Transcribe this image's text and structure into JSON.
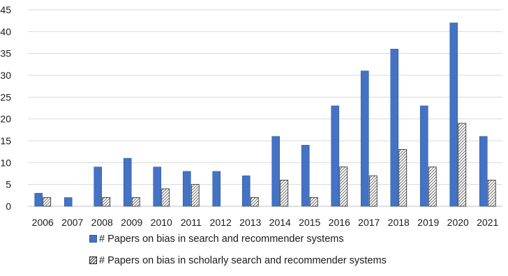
{
  "chart_data": {
    "type": "bar",
    "title": "",
    "xlabel": "",
    "ylabel": "",
    "ylim": [
      0,
      45
    ],
    "ytick_step": 5,
    "grid": true,
    "legend_position": "bottom",
    "categories": [
      "2006",
      "2007",
      "2008",
      "2009",
      "2010",
      "2011",
      "2012",
      "2013",
      "2014",
      "2015",
      "2016",
      "2017",
      "2018",
      "2019",
      "2020",
      "2021"
    ],
    "series": [
      {
        "name": "# Papers on bias in search and recommender systems",
        "values": [
          3,
          2,
          9,
          11,
          9,
          8,
          8,
          7,
          16,
          14,
          23,
          31,
          36,
          23,
          42,
          16
        ],
        "style": "solid",
        "color": "#4472c4"
      },
      {
        "name": "# Papers on bias in scholarly search and recommender systems",
        "values": [
          2,
          0,
          2,
          2,
          4,
          5,
          0,
          2,
          6,
          2,
          9,
          7,
          13,
          9,
          19,
          6
        ],
        "style": "hatched",
        "color": "#222222"
      }
    ],
    "gridline_color": "#d9d9d9"
  }
}
